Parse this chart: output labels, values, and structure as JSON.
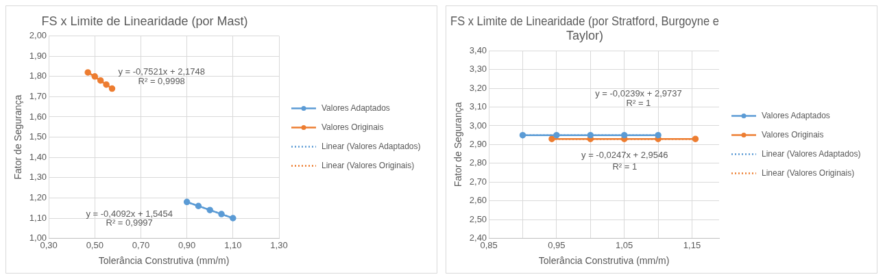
{
  "chart_data": [
    {
      "type": "line",
      "title": "FS x Limite de Linearidade (por Mast)",
      "xlabel": "Tolerância Construtiva (mm/m)",
      "ylabel": "Fator de Segurança",
      "xlim": [
        0.3,
        1.3
      ],
      "xticks": [
        {
          "value": 0.3,
          "label": "0,30"
        },
        {
          "value": 0.5,
          "label": "0,50"
        },
        {
          "value": 0.7,
          "label": "0,70"
        },
        {
          "value": 0.9,
          "label": "0,90"
        },
        {
          "value": 1.1,
          "label": "1,10"
        },
        {
          "value": 1.3,
          "label": "1,30"
        }
      ],
      "ylim": [
        1.0,
        2.0
      ],
      "yticks": [
        {
          "value": 1.0,
          "label": "1,00"
        },
        {
          "value": 1.1,
          "label": "1,10"
        },
        {
          "value": 1.2,
          "label": "1,20"
        },
        {
          "value": 1.3,
          "label": "1,30"
        },
        {
          "value": 1.4,
          "label": "1,40"
        },
        {
          "value": 1.5,
          "label": "1,50"
        },
        {
          "value": 1.6,
          "label": "1,60"
        },
        {
          "value": 1.7,
          "label": "1,70"
        },
        {
          "value": 1.8,
          "label": "1,80"
        },
        {
          "value": 1.9,
          "label": "1,90"
        },
        {
          "value": 2.0,
          "label": "2,00"
        }
      ],
      "grid": true,
      "legend": "right",
      "series": [
        {
          "name": "Valores Adaptados",
          "color": "#5b9bd5",
          "marker": "circle",
          "line_style": "solid",
          "x": [
            0.9,
            0.95,
            1.0,
            1.05,
            1.1
          ],
          "values": [
            1.18,
            1.16,
            1.14,
            1.12,
            1.1
          ]
        },
        {
          "name": "Valores Originais",
          "color": "#ed7d31",
          "marker": "circle",
          "line_style": "solid",
          "x": [
            0.47,
            0.5,
            0.525,
            0.55,
            0.575
          ],
          "values": [
            1.82,
            1.8,
            1.78,
            1.76,
            1.74
          ]
        },
        {
          "name": "Linear (Valores Adaptados)",
          "color": "#5b9bd5",
          "marker": "none",
          "line_style": "dotted",
          "x": [
            0.9,
            1.1
          ],
          "values": [
            1.18,
            1.1
          ]
        },
        {
          "name": "Linear (Valores Originais)",
          "color": "#ed7d31",
          "marker": "none",
          "line_style": "dotted",
          "x": [
            0.47,
            0.575
          ],
          "values": [
            1.82,
            1.74
          ]
        }
      ],
      "annotations": [
        "y = -0,7521x + 2,1748",
        "R² = 0,9998",
        "y = -0,4092x + 1,5454",
        "R² = 0,9997"
      ]
    },
    {
      "type": "line",
      "title": "FS x Limite de Linearidade (por Stratford, Burgoyne e Taylor)",
      "xlabel": "Tolerância Construtiva (mm/m)",
      "ylabel": "Fator de Segurança",
      "xlim": [
        0.85,
        1.19
      ],
      "xticks": [
        {
          "value": 0.85,
          "label": "0,85"
        },
        {
          "value": 0.9,
          "label": null
        },
        {
          "value": 0.95,
          "label": "0,95"
        },
        {
          "value": 1.0,
          "label": null
        },
        {
          "value": 1.05,
          "label": "1,05"
        },
        {
          "value": 1.1,
          "label": null
        },
        {
          "value": 1.15,
          "label": "1,15"
        }
      ],
      "ylim": [
        2.4,
        3.4
      ],
      "yticks": [
        {
          "value": 2.4,
          "label": "2,40"
        },
        {
          "value": 2.5,
          "label": "2,50"
        },
        {
          "value": 2.6,
          "label": "2,60"
        },
        {
          "value": 2.7,
          "label": "2,70"
        },
        {
          "value": 2.8,
          "label": "2,80"
        },
        {
          "value": 2.9,
          "label": "2,90"
        },
        {
          "value": 3.0,
          "label": "3,00"
        },
        {
          "value": 3.1,
          "label": "3,10"
        },
        {
          "value": 3.2,
          "label": "3,20"
        },
        {
          "value": 3.3,
          "label": "3,30"
        },
        {
          "value": 3.4,
          "label": "3,40"
        }
      ],
      "grid": true,
      "legend": "right",
      "series": [
        {
          "name": "Valores Adaptados",
          "color": "#5b9bd5",
          "marker": "circle",
          "line_style": "solid",
          "x": [
            0.9,
            0.95,
            1.0,
            1.05,
            1.1
          ],
          "values": [
            2.95,
            2.95,
            2.95,
            2.95,
            2.95
          ]
        },
        {
          "name": "Valores Originais",
          "color": "#ed7d31",
          "marker": "circle",
          "line_style": "solid",
          "x": [
            0.943,
            1.0,
            1.05,
            1.1,
            1.155
          ],
          "values": [
            2.93,
            2.93,
            2.93,
            2.93,
            2.93
          ]
        },
        {
          "name": "Linear (Valores Adaptados)",
          "color": "#5b9bd5",
          "marker": "none",
          "line_style": "dotted",
          "x": [
            0.9,
            1.1
          ],
          "values": [
            2.95,
            2.95
          ]
        },
        {
          "name": "Linear (Valores Originais)",
          "color": "#ed7d31",
          "marker": "none",
          "line_style": "dotted",
          "x": [
            0.943,
            1.155
          ],
          "values": [
            2.93,
            2.93
          ]
        }
      ],
      "annotations": [
        "y = -0,0239x + 2,9737",
        "R² = 1",
        "y = -0,0247x + 2,9546",
        "R² = 1"
      ]
    }
  ]
}
